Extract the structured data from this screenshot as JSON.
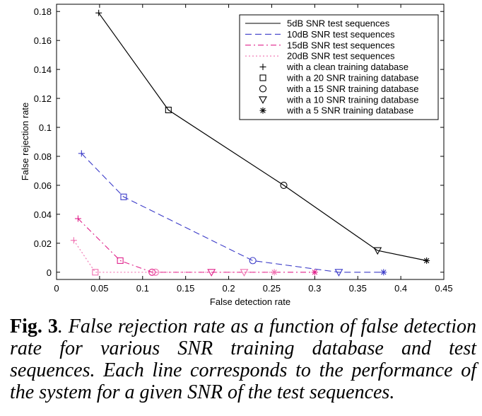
{
  "chart_data": {
    "type": "line",
    "xlabel": "False detection rate",
    "ylabel": "False rejection rate",
    "xlim": [
      0,
      0.45
    ],
    "ylim": [
      -0.005,
      0.185
    ],
    "xticks": [
      0,
      0.05,
      0.1,
      0.15,
      0.2,
      0.25,
      0.3,
      0.35,
      0.4,
      0.45
    ],
    "xtick_labels": [
      "0",
      "0.05",
      "0.1",
      "0.15",
      "0.2",
      "0.25",
      "0.3",
      "0.35",
      "0.4",
      "0.45"
    ],
    "yticks": [
      0,
      0.02,
      0.04,
      0.06,
      0.08,
      0.1,
      0.12,
      0.14,
      0.16,
      0.18
    ],
    "ytick_labels": [
      "0",
      "0.02",
      "0.04",
      "0.06",
      "0.08",
      "0.1",
      "0.12",
      "0.14",
      "0.16",
      "0.18"
    ],
    "grid": false,
    "legend_position": "top-right",
    "series": [
      {
        "name": "5dB SNR test sequences",
        "color": "#000000",
        "dash": "solid",
        "x": [
          0.049,
          0.13,
          0.264,
          0.373,
          0.43
        ],
        "y": [
          0.179,
          0.112,
          0.06,
          0.015,
          0.008
        ]
      },
      {
        "name": "10dB SNR test sequences",
        "color": "#3b3bc8",
        "dash": "dashed",
        "x": [
          0.029,
          0.078,
          0.228,
          0.328,
          0.38
        ],
        "y": [
          0.082,
          0.052,
          0.008,
          0.0,
          0.0
        ]
      },
      {
        "name": "15dB SNR test sequences",
        "color": "#e0208a",
        "dash": "dashdot",
        "x": [
          0.025,
          0.074,
          0.111,
          0.18,
          0.3
        ],
        "y": [
          0.037,
          0.008,
          0.0,
          0.0,
          0.0
        ]
      },
      {
        "name": "20dB SNR test sequences",
        "color": "#f070b0",
        "dash": "dotted",
        "x": [
          0.02,
          0.045,
          0.115,
          0.218,
          0.253
        ],
        "y": [
          0.022,
          0.0,
          0.0,
          0.0,
          0.0
        ]
      }
    ],
    "marker_legend": [
      {
        "label": "with a clean training database",
        "marker": "plus"
      },
      {
        "label": "with a 20 SNR training database",
        "marker": "square"
      },
      {
        "label": "with a 15 SNR training database",
        "marker": "circle"
      },
      {
        "label": "with a 10 SNR training database",
        "marker": "triangle-down"
      },
      {
        "label": "with a 5 SNR training database",
        "marker": "asterisk"
      }
    ],
    "point_markers": [
      "plus",
      "square",
      "circle",
      "triangle-down",
      "asterisk"
    ]
  },
  "caption": {
    "figure_label": "Fig. 3",
    "text": ". False rejection rate as a function of false detection rate for various SNR training database and test sequences. Each line corresponds to the performance of the system for a given SNR of the test sequences."
  }
}
